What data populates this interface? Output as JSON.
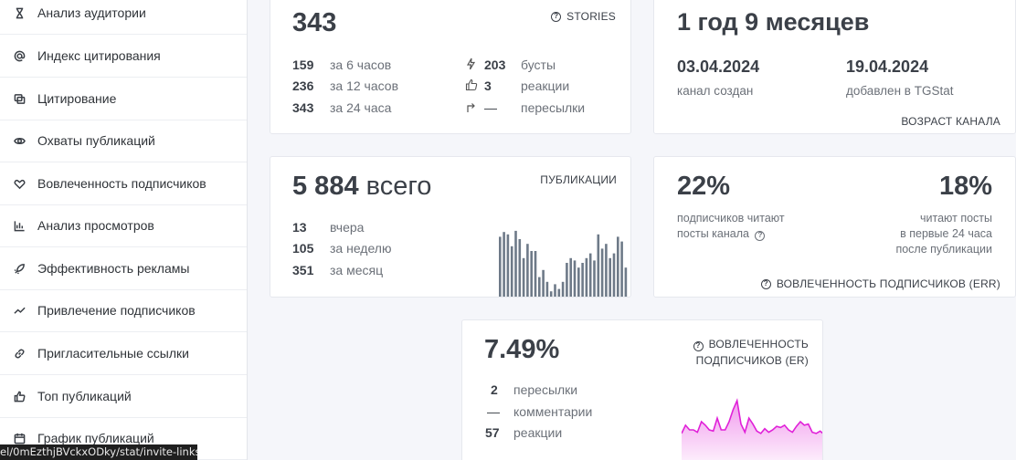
{
  "sidebar": {
    "items": [
      {
        "label": "Анализ аудитории",
        "icon": "hourglass-icon"
      },
      {
        "label": "Индекс цитирования",
        "icon": "at-icon"
      },
      {
        "label": "Цитирование",
        "icon": "quote-icon"
      },
      {
        "label": "Охваты публикаций",
        "icon": "eye-icon"
      },
      {
        "label": "Вовлеченность подписчиков",
        "icon": "heart-hand-icon"
      },
      {
        "label": "Анализ просмотров",
        "icon": "bar-chart-icon"
      },
      {
        "label": "Эффективность рекламы",
        "icon": "rocket-icon"
      },
      {
        "label": "Привлечение подписчиков",
        "icon": "trend-icon"
      },
      {
        "label": "Пригласительные ссылки",
        "icon": "link-icon"
      },
      {
        "label": "Топ публикаций",
        "icon": "thumbs-up-icon"
      },
      {
        "label": "График публикаций",
        "icon": "calendar-icon"
      }
    ]
  },
  "stories": {
    "total": "343",
    "tag": "STORIES",
    "rows": [
      {
        "num": "159",
        "label": "за 6 часов"
      },
      {
        "num": "236",
        "label": "за 12 часов"
      },
      {
        "num": "343",
        "label": "за 24 часа"
      }
    ],
    "right_rows": [
      {
        "num": "203",
        "label": "бусты",
        "icon": "bolt-icon"
      },
      {
        "num": "3",
        "label": "реакции",
        "icon": "thumbs-up-icon"
      },
      {
        "num": "—",
        "label": "пересылки",
        "icon": "forward-icon"
      }
    ]
  },
  "age": {
    "title": "1 год 9 месяцев",
    "created_date": "03.04.2024",
    "created_label": "канал создан",
    "added_date": "19.04.2024",
    "added_label": "добавлен в TGStat",
    "tag": "ВОЗРАСТ КАНАЛА"
  },
  "publications": {
    "total": "5 884",
    "total_suffix": "всего",
    "tag": "ПУБЛИКАЦИИ",
    "rows": [
      {
        "num": "13",
        "label": "вчера"
      },
      {
        "num": "105",
        "label": "за неделю"
      },
      {
        "num": "351",
        "label": "за месяц"
      }
    ],
    "bar_color": "#6e7a88"
  },
  "err": {
    "left_value": "22%",
    "left_text_1": "подписчиков читают",
    "left_text_2": "посты канала",
    "right_value": "18%",
    "right_text_1": "читают посты",
    "right_text_2": "в первые 24 часа",
    "right_text_3": "после публикации",
    "tag": "ВОВЛЕЧЕННОСТЬ ПОДПИСЧИКОВ (ERR)"
  },
  "er": {
    "value": "7.49%",
    "tag_line1": "ВОВЛЕЧЕННОСТЬ",
    "tag_line2": "ПОДПИСЧИКОВ (ER)",
    "rows": [
      {
        "num": "2",
        "label": "пересылки"
      },
      {
        "num": "—",
        "label": "комментарии"
      },
      {
        "num": "57",
        "label": "реакции"
      }
    ],
    "line_color": "#e020d8"
  },
  "statusbar": {
    "url": "el/0mEzthjBVckxODky/stat/invite-links"
  },
  "chart_data": [
    {
      "type": "bar",
      "title": "",
      "values": [
        52,
        56,
        54,
        44,
        57,
        50,
        34,
        46,
        40,
        40,
        18,
        24,
        14,
        6,
        12,
        8,
        14,
        30,
        34,
        32,
        26,
        30,
        34,
        38,
        32,
        54,
        42,
        46,
        34,
        38,
        52,
        48,
        26
      ],
      "ylim": [
        0,
        60
      ]
    },
    {
      "type": "area",
      "title": "",
      "values": [
        8,
        22,
        14,
        14,
        10,
        28,
        22,
        14,
        12,
        34,
        14,
        14,
        28,
        48,
        64,
        24,
        10,
        34,
        24,
        12,
        8,
        16,
        10,
        14,
        20,
        18,
        22,
        14,
        10,
        20,
        28,
        22,
        24,
        10,
        8,
        12,
        6
      ],
      "ylim": [
        0,
        70
      ]
    }
  ]
}
